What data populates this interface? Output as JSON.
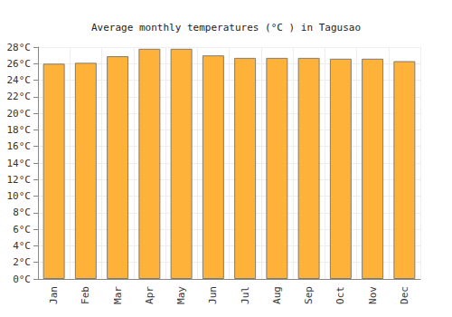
{
  "chart_data": {
    "type": "bar",
    "title": "Average monthly temperatures (°C ) in Tagusao",
    "categories": [
      "Jan",
      "Feb",
      "Mar",
      "Apr",
      "May",
      "Jun",
      "Jul",
      "Aug",
      "Sep",
      "Oct",
      "Nov",
      "Dec"
    ],
    "values": [
      26.0,
      26.1,
      26.9,
      27.8,
      27.8,
      27.0,
      26.7,
      26.7,
      26.7,
      26.6,
      26.6,
      26.3
    ],
    "color": "#ffae2e",
    "ylim": [
      0,
      28
    ],
    "yticks": [
      {
        "value": 0,
        "label": "0°C"
      },
      {
        "value": 2,
        "label": "2°C"
      },
      {
        "value": 4,
        "label": "4°C"
      },
      {
        "value": 6,
        "label": "6°C"
      },
      {
        "value": 8,
        "label": "8°C"
      },
      {
        "value": 10,
        "label": "10°C"
      },
      {
        "value": 12,
        "label": "12°C"
      },
      {
        "value": 14,
        "label": "14°C"
      },
      {
        "value": 16,
        "label": "16°C"
      },
      {
        "value": 18,
        "label": "18°C"
      },
      {
        "value": 20,
        "label": "20°C"
      },
      {
        "value": 22,
        "label": "22°C"
      },
      {
        "value": 24,
        "label": "24°C"
      },
      {
        "value": 26,
        "label": "26°C"
      },
      {
        "value": 28,
        "label": "28°C"
      }
    ],
    "grid": true
  }
}
